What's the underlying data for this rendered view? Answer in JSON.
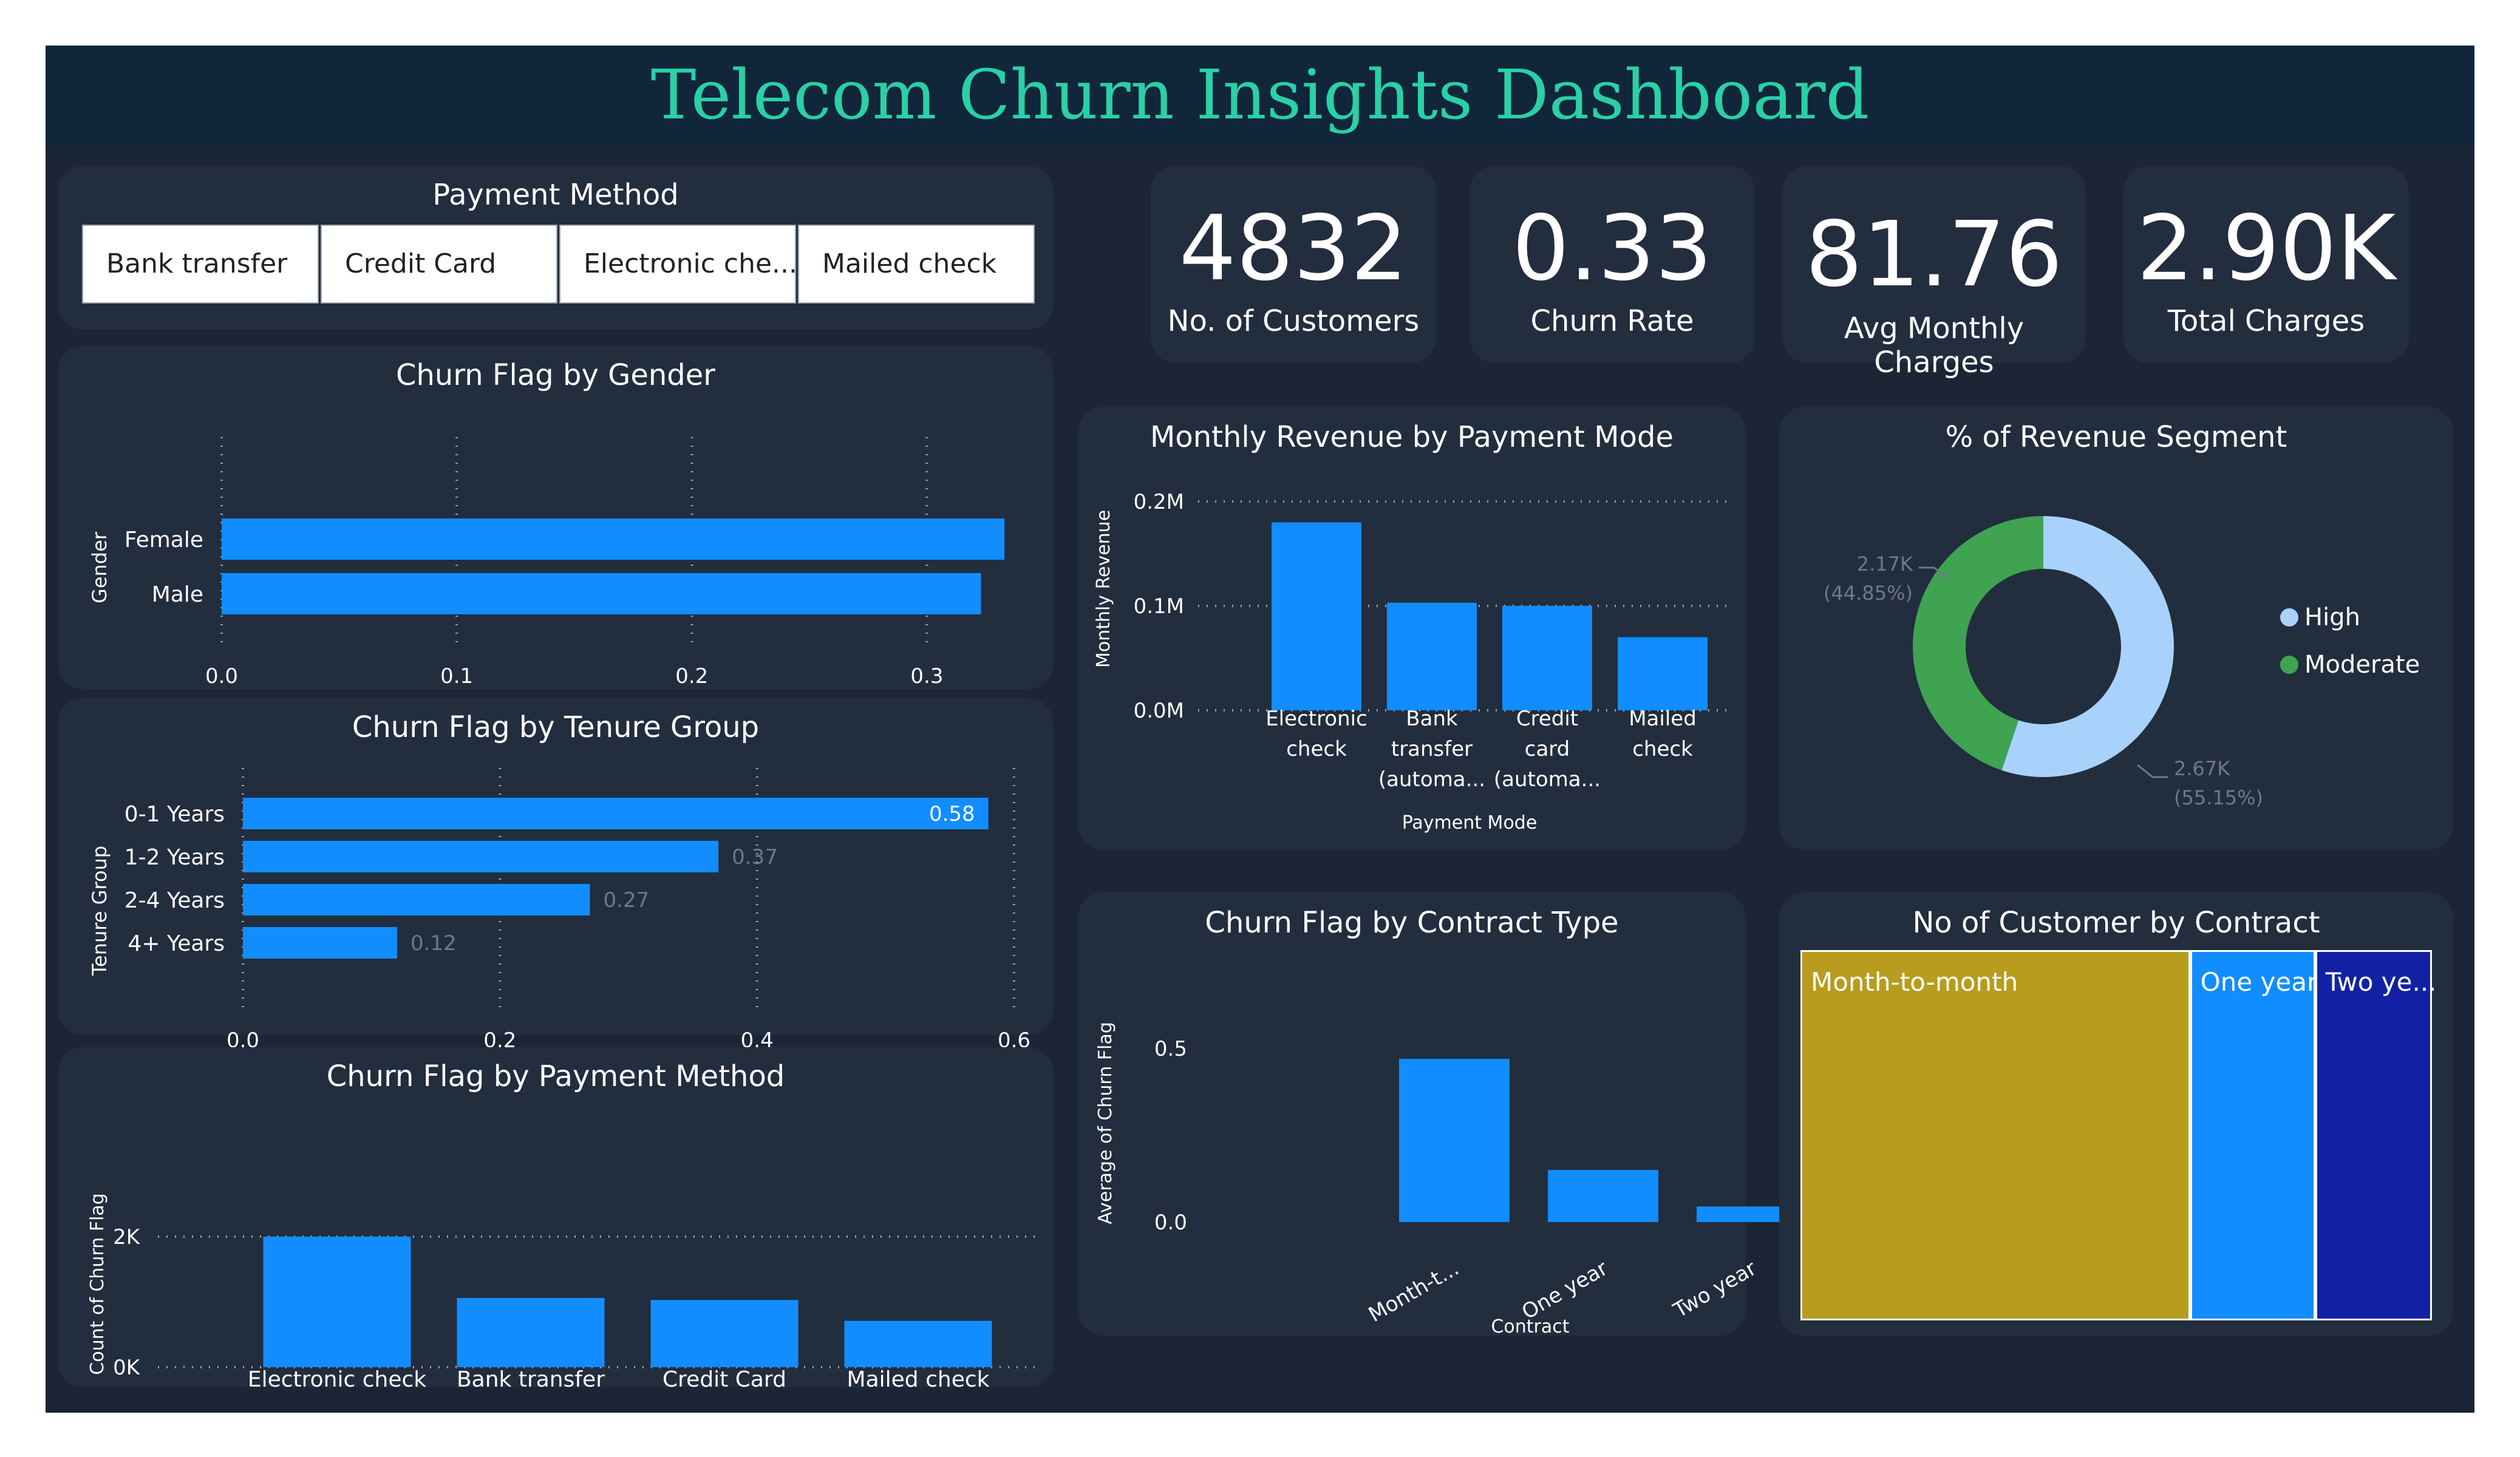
{
  "title": "Telecom Churn Insights Dashboard",
  "colors": {
    "title": "#2ad0a6",
    "bar": "#118dff",
    "high": "#a8d2fb",
    "moderate": "#3fa352",
    "tm_month": "#b79c1e",
    "tm_one": "#118dff",
    "tm_two": "#1221a3"
  },
  "slicer": {
    "title": "Payment Method",
    "options": [
      "Bank transfer",
      "Credit Card",
      "Electronic che...",
      "Mailed check"
    ]
  },
  "kpis": [
    {
      "value": "4832",
      "label": "No. of Customers"
    },
    {
      "value": "0.33",
      "label": "Churn Rate"
    },
    {
      "value": "81.76",
      "label": "Avg Monthly Charges"
    },
    {
      "value": "2.90K",
      "label": "Total Charges"
    }
  ],
  "charts": {
    "gender": {
      "title": "Churn Flag by Gender",
      "ylabel": "Gender"
    },
    "tenure": {
      "title": "Churn Flag by Tenure Group",
      "ylabel": "Tenure Group"
    },
    "payment": {
      "title": "Churn Flag by Payment Method",
      "ylabel": "Count of Churn Flag"
    },
    "revenue": {
      "title": "Monthly Revenue by Payment Mode",
      "ylabel": "Monthly Revenue",
      "xlabel": "Payment Mode"
    },
    "segment": {
      "title": "% of Revenue Segment"
    },
    "contract": {
      "title": "Churn Flag by Contract Type",
      "ylabel": "Average of Churn Flag",
      "xlabel": "Contract"
    },
    "customers": {
      "title": "No of Customer by Contract"
    }
  },
  "chart_data": [
    {
      "id": "gender",
      "type": "bar",
      "orientation": "horizontal",
      "title": "Churn Flag by Gender",
      "ylabel": "Gender",
      "categories": [
        "Female",
        "Male"
      ],
      "values": [
        0.333,
        0.323
      ],
      "xlim": [
        0,
        0.35
      ],
      "xticks": [
        "0.0",
        "0.1",
        "0.2",
        "0.3"
      ],
      "grid": true
    },
    {
      "id": "tenure",
      "type": "bar",
      "orientation": "horizontal",
      "title": "Churn Flag by Tenure Group",
      "ylabel": "Tenure Group",
      "categories": [
        "0-1 Years",
        "1-2 Years",
        "2-4 Years",
        "4+ Years"
      ],
      "values": [
        0.58,
        0.37,
        0.27,
        0.12
      ],
      "data_labels": [
        "0.58",
        "0.37",
        "0.27",
        "0.12"
      ],
      "xlim": [
        0,
        0.6
      ],
      "xticks": [
        "0.0",
        "0.2",
        "0.4",
        "0.6"
      ],
      "grid": true
    },
    {
      "id": "payment",
      "type": "bar",
      "title": "Churn Flag by Payment Method",
      "ylabel": "Count of Churn Flag",
      "categories": [
        "Electronic check",
        "Bank transfer",
        "Credit Card",
        "Mailed check"
      ],
      "values": [
        2000,
        1060,
        1030,
        710
      ],
      "ylim": [
        0,
        2000
      ],
      "yticks": [
        "0K",
        "2K"
      ],
      "grid": true
    },
    {
      "id": "revenue",
      "type": "bar",
      "title": "Monthly Revenue by Payment Mode",
      "ylabel": "Monthly Revenue",
      "xlabel": "Payment Mode",
      "categories": [
        [
          "Electronic",
          "check"
        ],
        [
          "Bank",
          "transfer",
          "(automa..."
        ],
        [
          "Credit",
          "card",
          "(automa..."
        ],
        [
          "Mailed",
          "check"
        ]
      ],
      "values": [
        180000,
        103000,
        100000,
        70000
      ],
      "ylim": [
        0,
        200000
      ],
      "yticks": [
        "0.0M",
        "0.1M",
        "0.2M"
      ],
      "grid": true
    },
    {
      "id": "segment",
      "type": "pie",
      "title": "% of Revenue Segment",
      "labels": [
        "High",
        "Moderate"
      ],
      "values": [
        2670,
        2170
      ],
      "data_labels": [
        [
          "2.67K",
          "(55.15%)"
        ],
        [
          "2.17K",
          "(44.85%)"
        ]
      ],
      "legend": "right"
    },
    {
      "id": "contract",
      "type": "bar",
      "title": "Churn Flag by Contract Type",
      "ylabel": "Average of Churn Flag",
      "xlabel": "Contract",
      "categories": [
        "Month-t...",
        "One year",
        "Two year"
      ],
      "values": [
        0.47,
        0.15,
        0.045
      ],
      "ylim": [
        0,
        0.5
      ],
      "yticks": [
        "0.0",
        "0.5"
      ],
      "grid": false
    },
    {
      "id": "customers",
      "type": "treemap",
      "title": "No of Customer by Contract",
      "labels": [
        "Month-to-month",
        "One year",
        "Two ye..."
      ],
      "values": [
        3270,
        1050,
        980
      ]
    }
  ]
}
